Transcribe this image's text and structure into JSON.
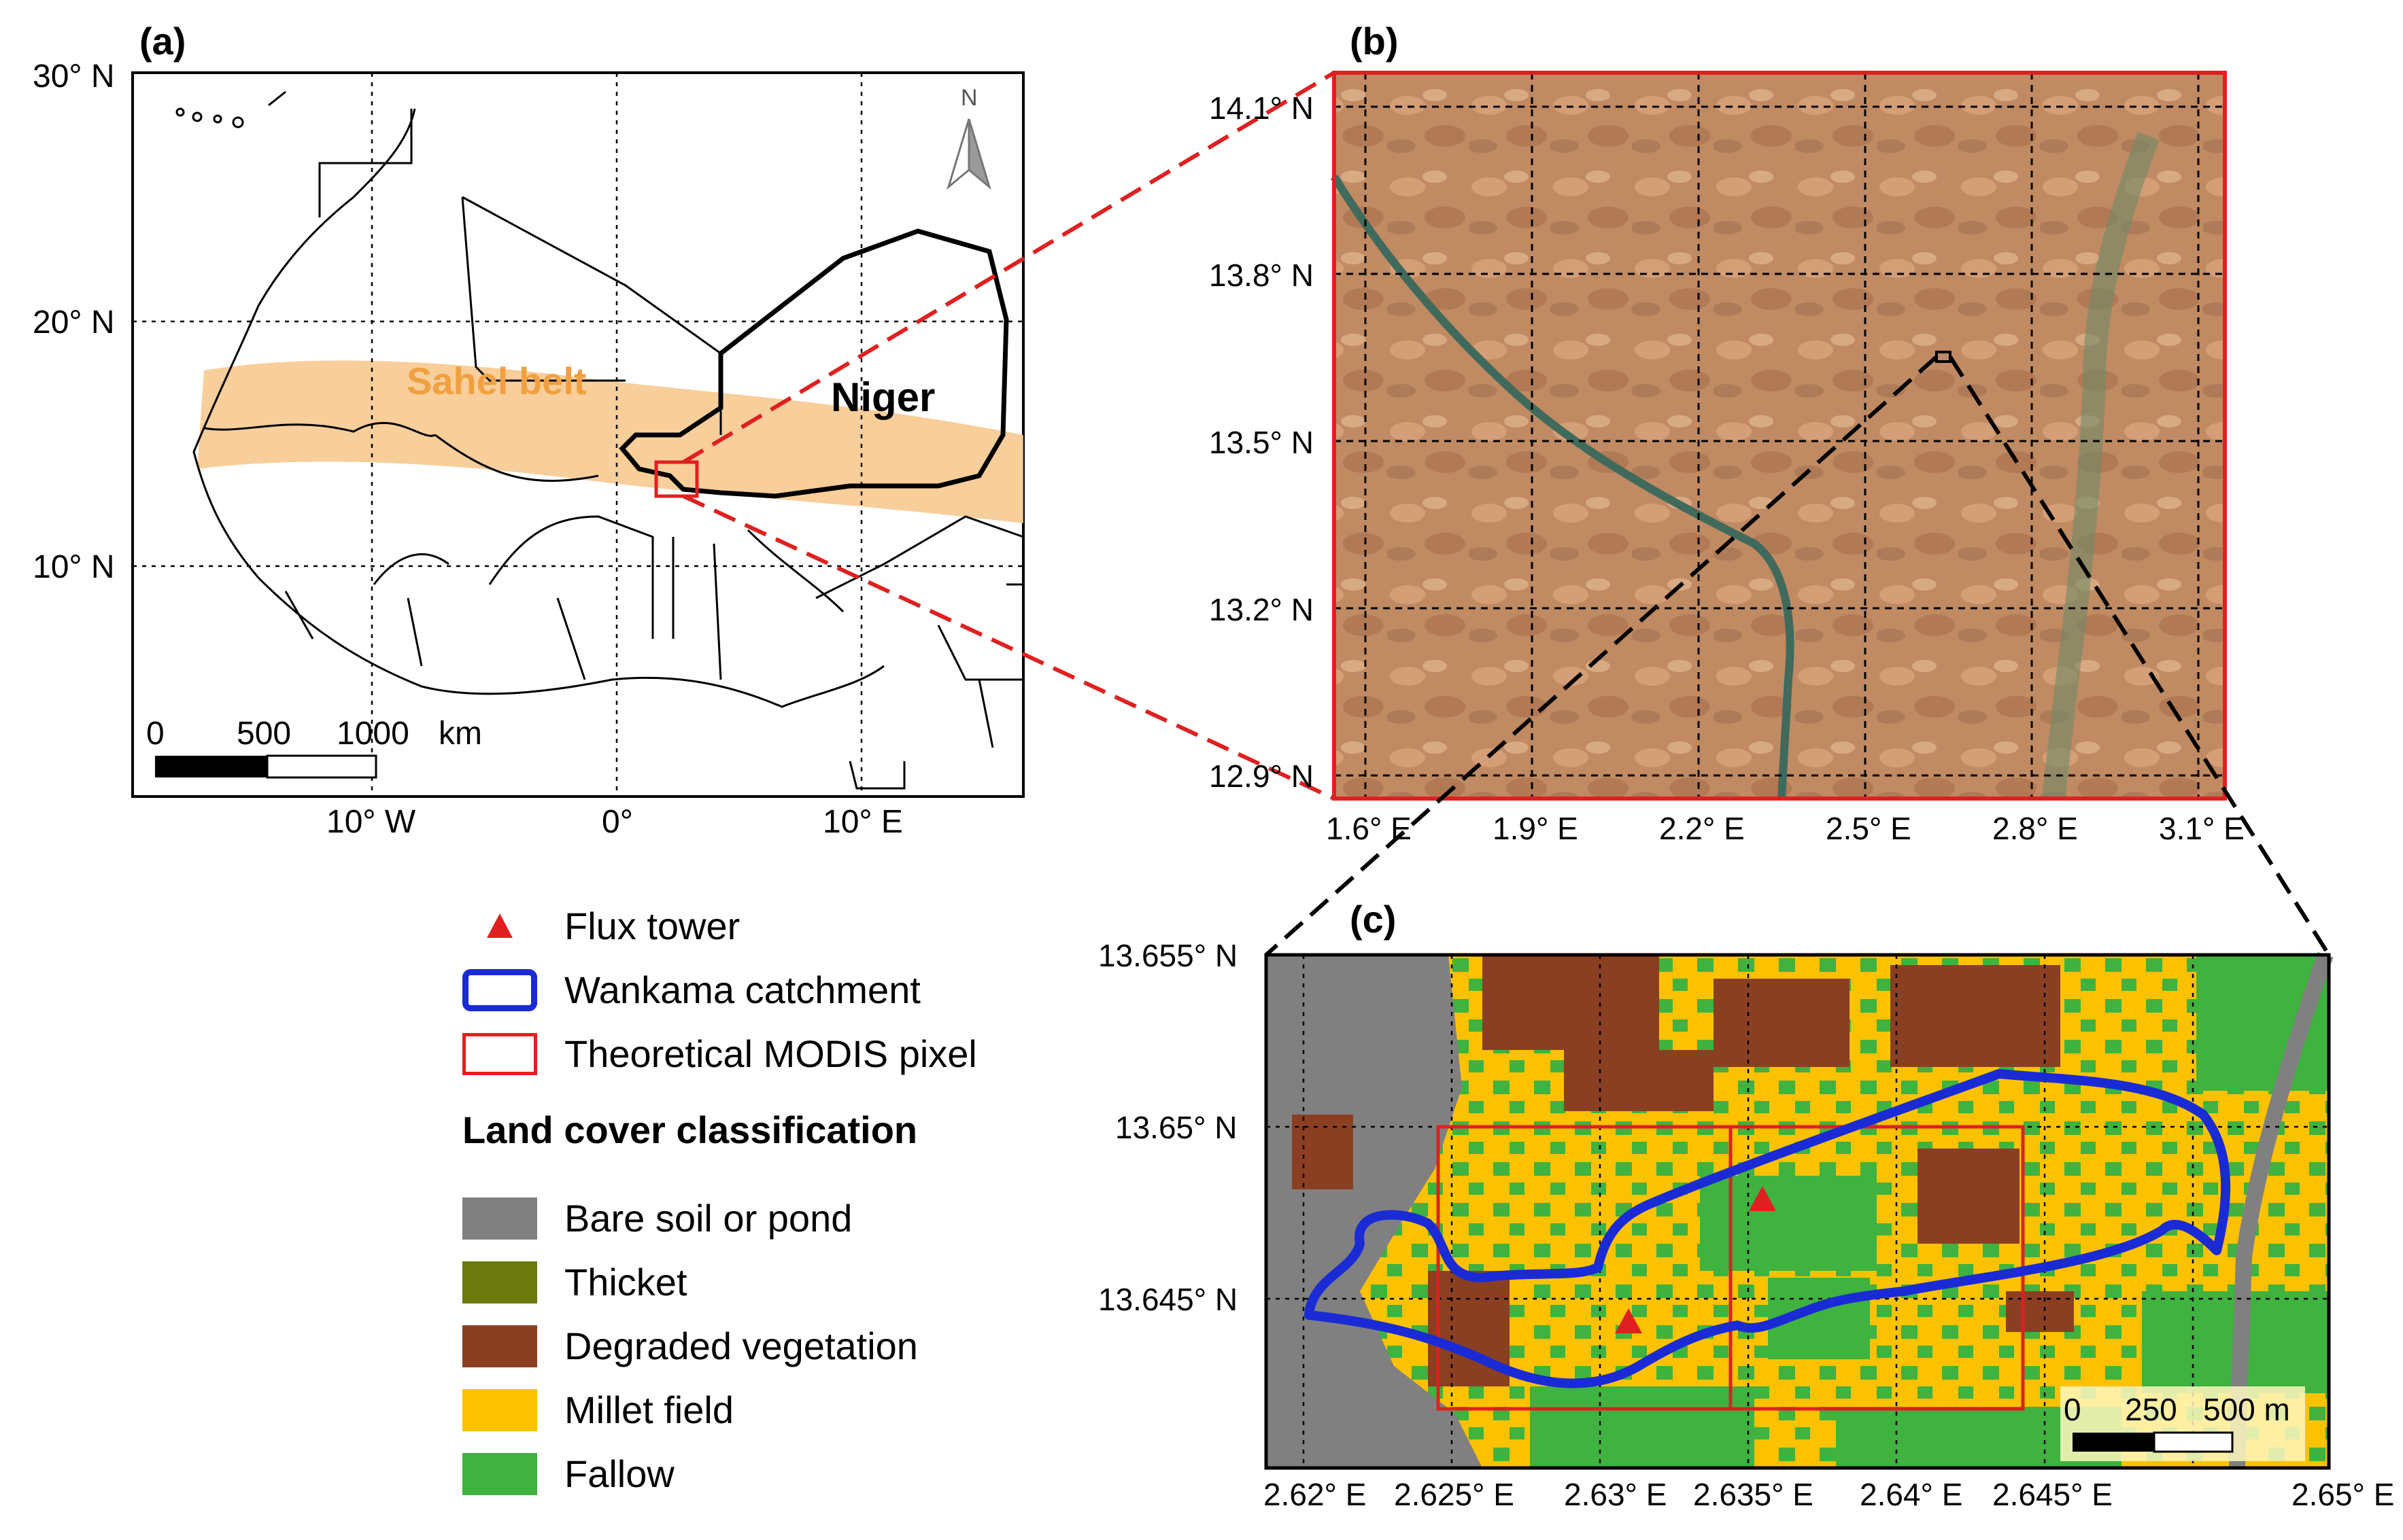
{
  "panels": {
    "a": {
      "label": "(a)",
      "lat_labels": [
        "30° N",
        "20° N",
        "10° N"
      ],
      "lon_labels": [
        "10° W",
        "0°",
        "10° E"
      ],
      "sahel_label": "Sahel belt",
      "country_label": "Niger",
      "north_label": "N",
      "scale_labels": [
        "0",
        "500",
        "1000",
        "km"
      ]
    },
    "b": {
      "label": "(b)",
      "lat_labels": [
        "14.1° N",
        "13.8° N",
        "13.5° N",
        "13.2° N",
        "12.9° N"
      ],
      "lon_labels": [
        "1.6° E",
        "1.9° E",
        "2.2° E",
        "2.5° E",
        "2.8° E",
        "3.1° E"
      ]
    },
    "c": {
      "label": "(c)",
      "lat_labels": [
        "13.655° N",
        "13.65° N",
        "13.645° N"
      ],
      "lon_labels": [
        "2.62° E",
        "2.625° E",
        "2.63° E",
        "2.635° E",
        "2.64° E",
        "2.645° E",
        "2.65° E"
      ],
      "scale_labels": [
        "0",
        "250",
        "500 m"
      ]
    }
  },
  "legend": {
    "items": [
      {
        "label": "Flux tower",
        "icon": "red-triangle"
      },
      {
        "label": "Wankama catchment",
        "icon": "blue-outline-box"
      },
      {
        "label": "Theoretical MODIS pixel",
        "icon": "red-outline-box"
      }
    ],
    "classification_title": "Land cover classification",
    "classes": [
      {
        "label": "Bare soil or pond",
        "color": "#808080"
      },
      {
        "label": "Thicket",
        "color": "#6b7a0c"
      },
      {
        "label": "Degraded vegetation",
        "color": "#8b3f22"
      },
      {
        "label": "Millet field",
        "color": "#fcc200"
      },
      {
        "label": "Fallow",
        "color": "#3fb23f"
      }
    ]
  },
  "colors": {
    "sahel": "#f7c98f",
    "sahel_text": "#f0a040",
    "highlight_red": "#e02020",
    "catchment_blue": "#1a2bd6"
  }
}
